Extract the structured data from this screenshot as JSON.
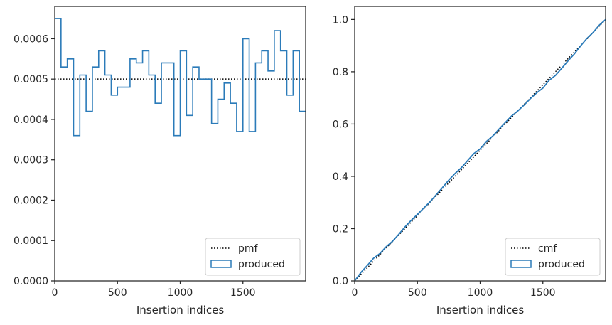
{
  "chart_data": [
    {
      "type": "step",
      "xlabel": "Insertion indices",
      "ylabel": "",
      "xlim": [
        0,
        2000
      ],
      "ylim": [
        0,
        0.00068
      ],
      "xticks": [
        0,
        500,
        1000,
        1500
      ],
      "xtick_labels": [
        "0",
        "500",
        "1000",
        "1500"
      ],
      "yticks": [
        0,
        0.0001,
        0.0002,
        0.0003,
        0.0004,
        0.0005,
        0.0006
      ],
      "ytick_labels": [
        "0.0000",
        "0.0001",
        "0.0002",
        "0.0003",
        "0.0004",
        "0.0005",
        "0.0006"
      ],
      "legend": {
        "position": "bottom-right",
        "entries": [
          "pmf",
          "produced"
        ]
      },
      "series": [
        {
          "name": "pmf",
          "style": "dotted",
          "color": "#000000",
          "x": [
            0,
            2000
          ],
          "y": [
            0.0005,
            0.0005
          ]
        },
        {
          "name": "produced",
          "style": "step",
          "color": "#2b7bb9",
          "bin_edges": [
            0,
            50,
            100,
            150,
            200,
            250,
            300,
            350,
            400,
            450,
            500,
            550,
            600,
            650,
            700,
            750,
            800,
            850,
            900,
            950,
            1000,
            1050,
            1100,
            1150,
            1200,
            1250,
            1300,
            1350,
            1400,
            1450,
            1500,
            1550,
            1600,
            1650,
            1700,
            1750,
            1800,
            1850,
            1900,
            1950,
            2000
          ],
          "values": [
            0.00065,
            0.00053,
            0.00055,
            0.00036,
            0.00051,
            0.00042,
            0.00053,
            0.00057,
            0.00051,
            0.00046,
            0.00048,
            0.00048,
            0.00055,
            0.00054,
            0.00057,
            0.00051,
            0.00044,
            0.00054,
            0.00054,
            0.00036,
            0.00057,
            0.00041,
            0.00053,
            0.0005,
            0.0005,
            0.00039,
            0.00045,
            0.00049,
            0.00044,
            0.00037,
            0.0006,
            0.00037,
            0.00054,
            0.00057,
            0.00052,
            0.00062,
            0.00057,
            0.00046,
            0.00057,
            0.00042
          ]
        }
      ]
    },
    {
      "type": "line",
      "xlabel": "Insertion indices",
      "ylabel": "",
      "xlim": [
        0,
        2000
      ],
      "ylim": [
        0,
        1.05
      ],
      "xticks": [
        0,
        500,
        1000,
        1500
      ],
      "xtick_labels": [
        "0",
        "500",
        "1000",
        "1500"
      ],
      "yticks": [
        0,
        0.2,
        0.4,
        0.6,
        0.8,
        1.0
      ],
      "ytick_labels": [
        "0.0",
        "0.2",
        "0.4",
        "0.6",
        "0.8",
        "1.0"
      ],
      "legend": {
        "position": "bottom-right",
        "entries": [
          "cmf",
          "produced"
        ]
      },
      "series": [
        {
          "name": "cmf",
          "style": "dotted",
          "color": "#000000",
          "x": [
            0,
            2000
          ],
          "y": [
            0,
            1
          ]
        },
        {
          "name": "produced",
          "style": "solid",
          "color": "#2b7bb9",
          "x": [
            0,
            50,
            100,
            150,
            200,
            250,
            300,
            350,
            400,
            450,
            500,
            550,
            600,
            650,
            700,
            750,
            800,
            850,
            900,
            950,
            1000,
            1050,
            1100,
            1150,
            1200,
            1250,
            1300,
            1350,
            1400,
            1450,
            1500,
            1550,
            1600,
            1650,
            1700,
            1750,
            1800,
            1850,
            1900,
            1950,
            2000
          ],
          "y": [
            0,
            0.0325,
            0.059,
            0.0865,
            0.1045,
            0.13,
            0.151,
            0.1775,
            0.206,
            0.2315,
            0.2545,
            0.2785,
            0.3025,
            0.33,
            0.357,
            0.3855,
            0.411,
            0.433,
            0.46,
            0.487,
            0.505,
            0.5335,
            0.554,
            0.5805,
            0.6055,
            0.6305,
            0.65,
            0.6725,
            0.697,
            0.719,
            0.7375,
            0.7675,
            0.786,
            0.813,
            0.8415,
            0.8675,
            0.8985,
            0.927,
            0.95,
            0.9785,
            1.0
          ]
        }
      ]
    }
  ]
}
